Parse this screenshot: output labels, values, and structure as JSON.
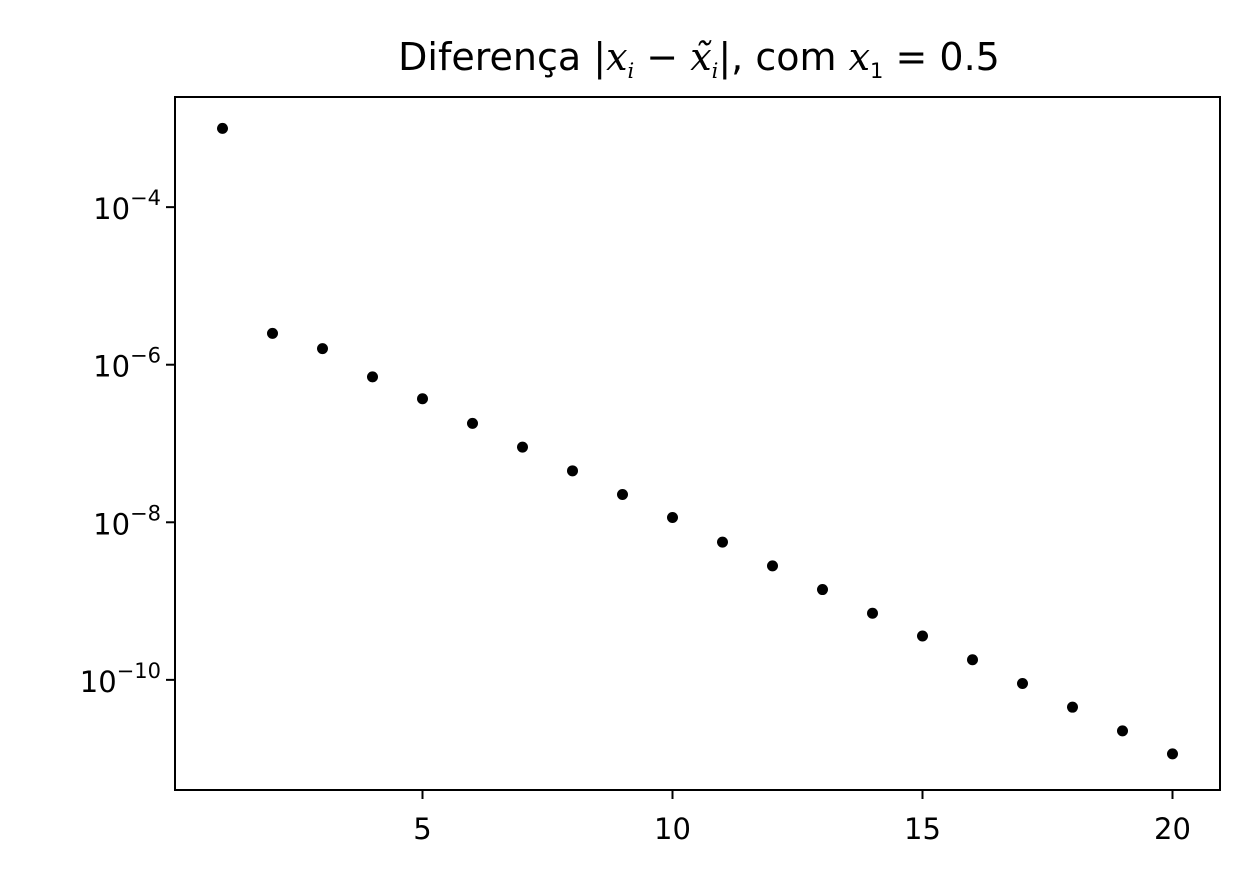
{
  "chart_data": {
    "type": "scatter",
    "title": {
      "prefix": "Diferença |",
      "var_x": "x",
      "sub_i": "i",
      "minus": " − ",
      "var_xt": "x̃",
      "sub_i2": "i",
      "suffix": "|, com ",
      "var_x1": "x",
      "sub_1": "1",
      "value": " = 0.5"
    },
    "xlabel": "",
    "ylabel": "",
    "x_scale": "linear",
    "y_scale": "log",
    "xlim": [
      0.05,
      20.95
    ],
    "ylim": [
      4e-12,
      0.0025
    ],
    "grid": false,
    "legend": "none",
    "marker_color": "#000000",
    "x_ticks": [
      5,
      10,
      15,
      20
    ],
    "x_tick_labels": [
      "5",
      "10",
      "15",
      "20"
    ],
    "y_ticks": [
      0.0001,
      1e-06,
      1e-08,
      1e-10
    ],
    "y_tick_labels": [
      {
        "base": "10",
        "exp": "−4"
      },
      {
        "base": "10",
        "exp": "−6"
      },
      {
        "base": "10",
        "exp": "−8"
      },
      {
        "base": "10",
        "exp": "−10"
      }
    ],
    "series": [
      {
        "x": [
          1,
          2,
          3,
          4,
          5,
          6,
          7,
          8,
          9,
          10,
          11,
          12,
          13,
          14,
          15,
          16,
          17,
          18,
          19,
          20
        ],
        "y": [
          0.001,
          2.5e-06,
          1.6e-06,
          7e-07,
          3.7e-07,
          1.8e-07,
          9e-08,
          4.5e-08,
          2.25e-08,
          1.15e-08,
          5.6e-09,
          2.8e-09,
          1.4e-09,
          7e-10,
          3.6e-10,
          1.8e-10,
          9e-11,
          4.5e-11,
          2.25e-11,
          1.15e-11
        ]
      }
    ]
  }
}
